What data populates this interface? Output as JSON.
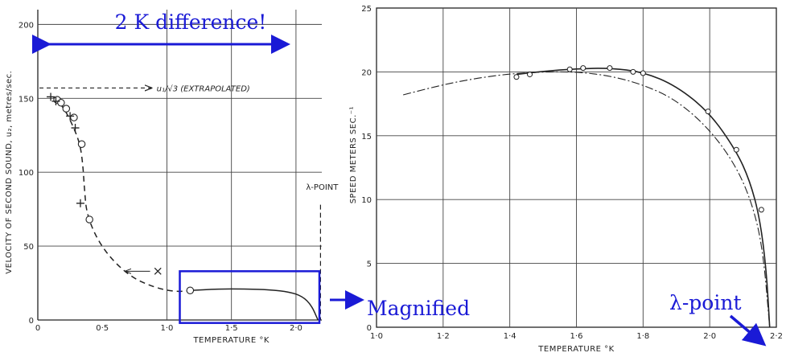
{
  "chart_data": [
    {
      "type": "line",
      "xlabel": "TEMPERATURE °K",
      "ylabel": "VELOCITY OF SECOND SOUND, u₂, metres/sec.",
      "xlim": [
        0,
        2.2
      ],
      "ylim": [
        0,
        210
      ],
      "x_ticks": [
        0,
        0.5,
        1.0,
        1.5,
        2.0
      ],
      "x_tick_labels": [
        "0",
        "0·5",
        "1·0",
        "1·5",
        "2·0"
      ],
      "y_ticks": [
        0,
        50,
        100,
        150,
        200
      ],
      "y_tick_labels": [
        "0",
        "50",
        "100",
        "150",
        "200"
      ],
      "grid": true,
      "series": [
        {
          "style": "dashed",
          "x": [
            0.12,
            0.2,
            0.28,
            0.33,
            0.35,
            0.36,
            0.38,
            0.5,
            0.7,
            0.9,
            1.07,
            1.18
          ],
          "y": [
            151,
            144,
            130,
            118,
            104,
            90,
            70,
            48,
            30,
            22,
            19,
            20
          ]
        },
        {
          "style": "solid",
          "x": [
            1.18,
            1.4,
            1.6,
            1.8,
            1.95,
            2.05,
            2.12,
            2.17
          ],
          "y": [
            20,
            21,
            21,
            20.5,
            19,
            16,
            10,
            0
          ]
        }
      ],
      "points_circle": [
        {
          "x": 0.15,
          "y": 149
        },
        {
          "x": 0.18,
          "y": 147
        },
        {
          "x": 0.22,
          "y": 143
        },
        {
          "x": 0.28,
          "y": 137
        },
        {
          "x": 0.34,
          "y": 119
        },
        {
          "x": 0.4,
          "y": 68
        },
        {
          "x": 1.18,
          "y": 20
        }
      ],
      "points_plus": [
        {
          "x": 0.1,
          "y": 151
        },
        {
          "x": 0.14,
          "y": 148
        },
        {
          "x": 0.25,
          "y": 138
        },
        {
          "x": 0.29,
          "y": 130
        },
        {
          "x": 0.33,
          "y": 79
        }
      ],
      "points_x": [
        {
          "x": 0.93,
          "y": 33
        }
      ],
      "extrapolated": {
        "y": 157,
        "label": "u₁/√3 (EXTRAPOLATED)"
      },
      "lambda_label": "λ-POINT",
      "lambda_x": 2.19
    },
    {
      "type": "line",
      "xlabel": "TEMPERATURE °K",
      "ylabel": "SPEED   METERS SEC.⁻¹",
      "xlim": [
        1.0,
        2.2
      ],
      "ylim": [
        0,
        25
      ],
      "x_ticks": [
        1.0,
        1.2,
        1.4,
        1.6,
        1.8,
        2.0,
        2.2
      ],
      "x_tick_labels": [
        "1·0",
        "1·2",
        "1·4",
        "1·6",
        "1·8",
        "2·0",
        "2·2"
      ],
      "y_ticks": [
        0,
        5,
        10,
        15,
        20,
        25
      ],
      "y_tick_labels": [
        "0",
        "5",
        "10",
        "15",
        "20",
        "25"
      ],
      "grid": true,
      "series": [
        {
          "style": "solid",
          "x": [
            1.42,
            1.5,
            1.6,
            1.7,
            1.8,
            1.9,
            2.0,
            2.08,
            2.12,
            2.15,
            2.17,
            2.18
          ],
          "y": [
            19.8,
            20.05,
            20.25,
            20.3,
            20.0,
            18.9,
            16.8,
            13.8,
            11.5,
            8.6,
            4.5,
            0
          ]
        },
        {
          "style": "dashdot",
          "x": [
            1.08,
            1.2,
            1.3,
            1.4,
            1.5,
            1.6,
            1.7,
            1.8,
            1.9,
            2.0,
            2.08,
            2.13,
            2.16,
            2.18
          ],
          "y": [
            18.2,
            19.0,
            19.5,
            19.85,
            20.0,
            20.0,
            19.7,
            19.0,
            17.8,
            15.5,
            12.6,
            9.5,
            6.0,
            0
          ]
        }
      ],
      "points_circle": [
        {
          "x": 1.42,
          "y": 19.6
        },
        {
          "x": 1.46,
          "y": 19.8
        },
        {
          "x": 1.58,
          "y": 20.2
        },
        {
          "x": 1.62,
          "y": 20.3
        },
        {
          "x": 1.7,
          "y": 20.3
        },
        {
          "x": 1.77,
          "y": 20.0
        },
        {
          "x": 1.8,
          "y": 19.9
        },
        {
          "x": 1.995,
          "y": 16.9
        },
        {
          "x": 2.08,
          "y": 13.9
        },
        {
          "x": 2.155,
          "y": 9.2
        }
      ]
    }
  ],
  "annotations": {
    "difference": "2 K difference!",
    "magnified": "Magnified",
    "lambda_point": "λ-point"
  },
  "colors": {
    "annotation": "#1a1ad6",
    "ink": "#222222"
  }
}
